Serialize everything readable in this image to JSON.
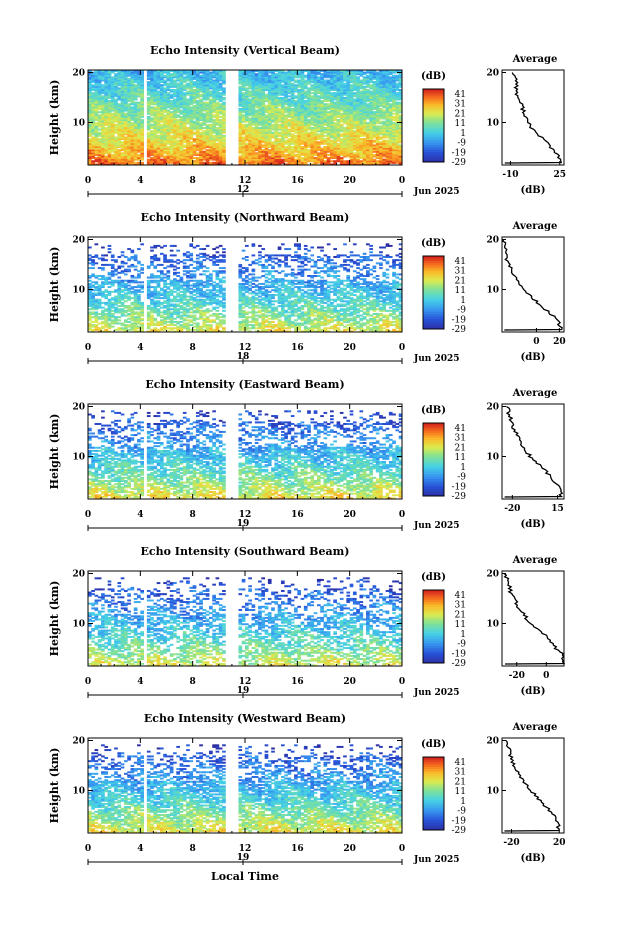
{
  "figure": {
    "xlabel_bottom": "Local Time"
  },
  "chart_data": [
    {
      "type": "heatmap",
      "title": "Echo Intensity (Vertical Beam)",
      "ylabel": "Height (km)",
      "x_ticks": [
        "0",
        "4",
        "8",
        "12",
        "16",
        "20",
        "0"
      ],
      "date_tick": "12",
      "date_label": "Jun 2025",
      "xlim": [
        0,
        24
      ],
      "ylim": [
        1.5,
        20.5
      ],
      "y_ticks": [
        "20",
        "10"
      ],
      "colorbar": {
        "label": "(dB)",
        "ticks": [
          "41",
          "31",
          "21",
          "11",
          "1",
          "-9",
          "-19",
          "-29"
        ],
        "range": [
          -29,
          46
        ]
      },
      "data_gaps_hours": [
        [
          4.2,
          4.6
        ],
        [
          10.6,
          11.4
        ]
      ],
      "average_profile": {
        "title": "Average",
        "xlabel": "(dB)",
        "x_ticks": [
          "-10",
          "25"
        ],
        "y_ticks": [
          "20",
          "10"
        ],
        "xlim": [
          -16,
          28
        ],
        "heights_km": [
          20,
          18,
          16,
          14,
          12,
          10,
          8,
          6,
          4,
          2
        ],
        "values_db": [
          -8,
          -5,
          -6,
          -3,
          0,
          2,
          8,
          16,
          22,
          26
        ]
      }
    },
    {
      "type": "heatmap",
      "title": "Echo Intensity (Northward Beam)",
      "ylabel": "Height (km)",
      "x_ticks": [
        "0",
        "4",
        "8",
        "12",
        "16",
        "20",
        "0"
      ],
      "date_tick": "18",
      "date_label": "Jun 2025",
      "xlim": [
        0,
        24
      ],
      "ylim": [
        1.5,
        20.5
      ],
      "y_ticks": [
        "20",
        "10"
      ],
      "colorbar": {
        "label": "(dB)",
        "ticks": [
          "41",
          "31",
          "21",
          "11",
          "1",
          "-9",
          "-19",
          "-29"
        ],
        "range": [
          -29,
          46
        ]
      },
      "data_gaps_hours": [
        [
          4.2,
          4.6
        ],
        [
          10.6,
          11.4
        ]
      ],
      "average_profile": {
        "title": "Average",
        "xlabel": "(dB)",
        "x_ticks": [
          "0",
          "20"
        ],
        "y_ticks": [
          "20",
          "10"
        ],
        "xlim": [
          -30,
          24
        ],
        "heights_km": [
          20,
          18,
          16,
          14,
          12,
          10,
          8,
          6,
          4,
          2
        ],
        "values_db": [
          -28,
          -27,
          -26,
          -22,
          -18,
          -12,
          -2,
          8,
          18,
          22
        ]
      }
    },
    {
      "type": "heatmap",
      "title": "Echo Intensity (Eastward Beam)",
      "ylabel": "Height (km)",
      "x_ticks": [
        "0",
        "4",
        "8",
        "12",
        "16",
        "20",
        "0"
      ],
      "date_tick": "19",
      "date_label": "Jun 2025",
      "xlim": [
        0,
        24
      ],
      "ylim": [
        1.5,
        20.5
      ],
      "y_ticks": [
        "20",
        "10"
      ],
      "colorbar": {
        "label": "(dB)",
        "ticks": [
          "41",
          "31",
          "21",
          "11",
          "1",
          "-9",
          "-19",
          "-29"
        ],
        "range": [
          -29,
          46
        ]
      },
      "data_gaps_hours": [
        [
          4.2,
          4.6
        ],
        [
          10.6,
          11.4
        ]
      ],
      "average_profile": {
        "title": "Average",
        "xlabel": "(dB)",
        "x_ticks": [
          "-20",
          "15"
        ],
        "y_ticks": [
          "20",
          "10"
        ],
        "xlim": [
          -28,
          20
        ],
        "heights_km": [
          20,
          18,
          16,
          14,
          12,
          10,
          8,
          6,
          4,
          2
        ],
        "values_db": [
          -24,
          -22,
          -20,
          -16,
          -12,
          -6,
          2,
          10,
          16,
          18
        ]
      }
    },
    {
      "type": "heatmap",
      "title": "Echo Intensity (Southward Beam)",
      "ylabel": "Height (km)",
      "x_ticks": [
        "0",
        "4",
        "8",
        "12",
        "16",
        "20",
        "0"
      ],
      "date_tick": "19",
      "date_label": "Jun 2025",
      "xlim": [
        0,
        24
      ],
      "ylim": [
        1.5,
        20.5
      ],
      "y_ticks": [
        "20",
        "10"
      ],
      "colorbar": {
        "label": "(dB)",
        "ticks": [
          "41",
          "31",
          "21",
          "11",
          "1",
          "-9",
          "-19",
          "-29"
        ],
        "range": [
          -29,
          46
        ]
      },
      "data_gaps_hours": [
        [
          4.2,
          4.6
        ],
        [
          10.6,
          11.4
        ]
      ],
      "average_profile": {
        "title": "Average",
        "xlabel": "(dB)",
        "x_ticks": [
          "-20",
          "0"
        ],
        "y_ticks": [
          "20",
          "10"
        ],
        "xlim": [
          -30,
          12
        ],
        "heights_km": [
          20,
          18,
          16,
          14,
          12,
          10,
          8,
          6,
          4,
          2
        ],
        "values_db": [
          -28,
          -26,
          -24,
          -20,
          -16,
          -10,
          -2,
          4,
          10,
          12
        ]
      }
    },
    {
      "type": "heatmap",
      "title": "Echo Intensity (Westward Beam)",
      "ylabel": "Height (km)",
      "x_ticks": [
        "0",
        "4",
        "8",
        "12",
        "16",
        "20",
        "0"
      ],
      "date_tick": "19",
      "date_label": "Jun 2025",
      "xlim": [
        0,
        24
      ],
      "ylim": [
        1.5,
        20.5
      ],
      "y_ticks": [
        "20",
        "10"
      ],
      "colorbar": {
        "label": "(dB)",
        "ticks": [
          "41",
          "31",
          "21",
          "11",
          "1",
          "-9",
          "-19",
          "-29"
        ],
        "range": [
          -29,
          46
        ]
      },
      "data_gaps_hours": [
        [
          4.2,
          4.6
        ],
        [
          10.6,
          11.4
        ]
      ],
      "average_profile": {
        "title": "Average",
        "xlabel": "(dB)",
        "x_ticks": [
          "-20",
          "20"
        ],
        "y_ticks": [
          "20",
          "10"
        ],
        "xlim": [
          -28,
          24
        ],
        "heights_km": [
          20,
          18,
          16,
          14,
          12,
          10,
          8,
          6,
          4,
          2
        ],
        "values_db": [
          -24,
          -22,
          -20,
          -16,
          -10,
          -4,
          4,
          12,
          18,
          20
        ]
      }
    }
  ]
}
